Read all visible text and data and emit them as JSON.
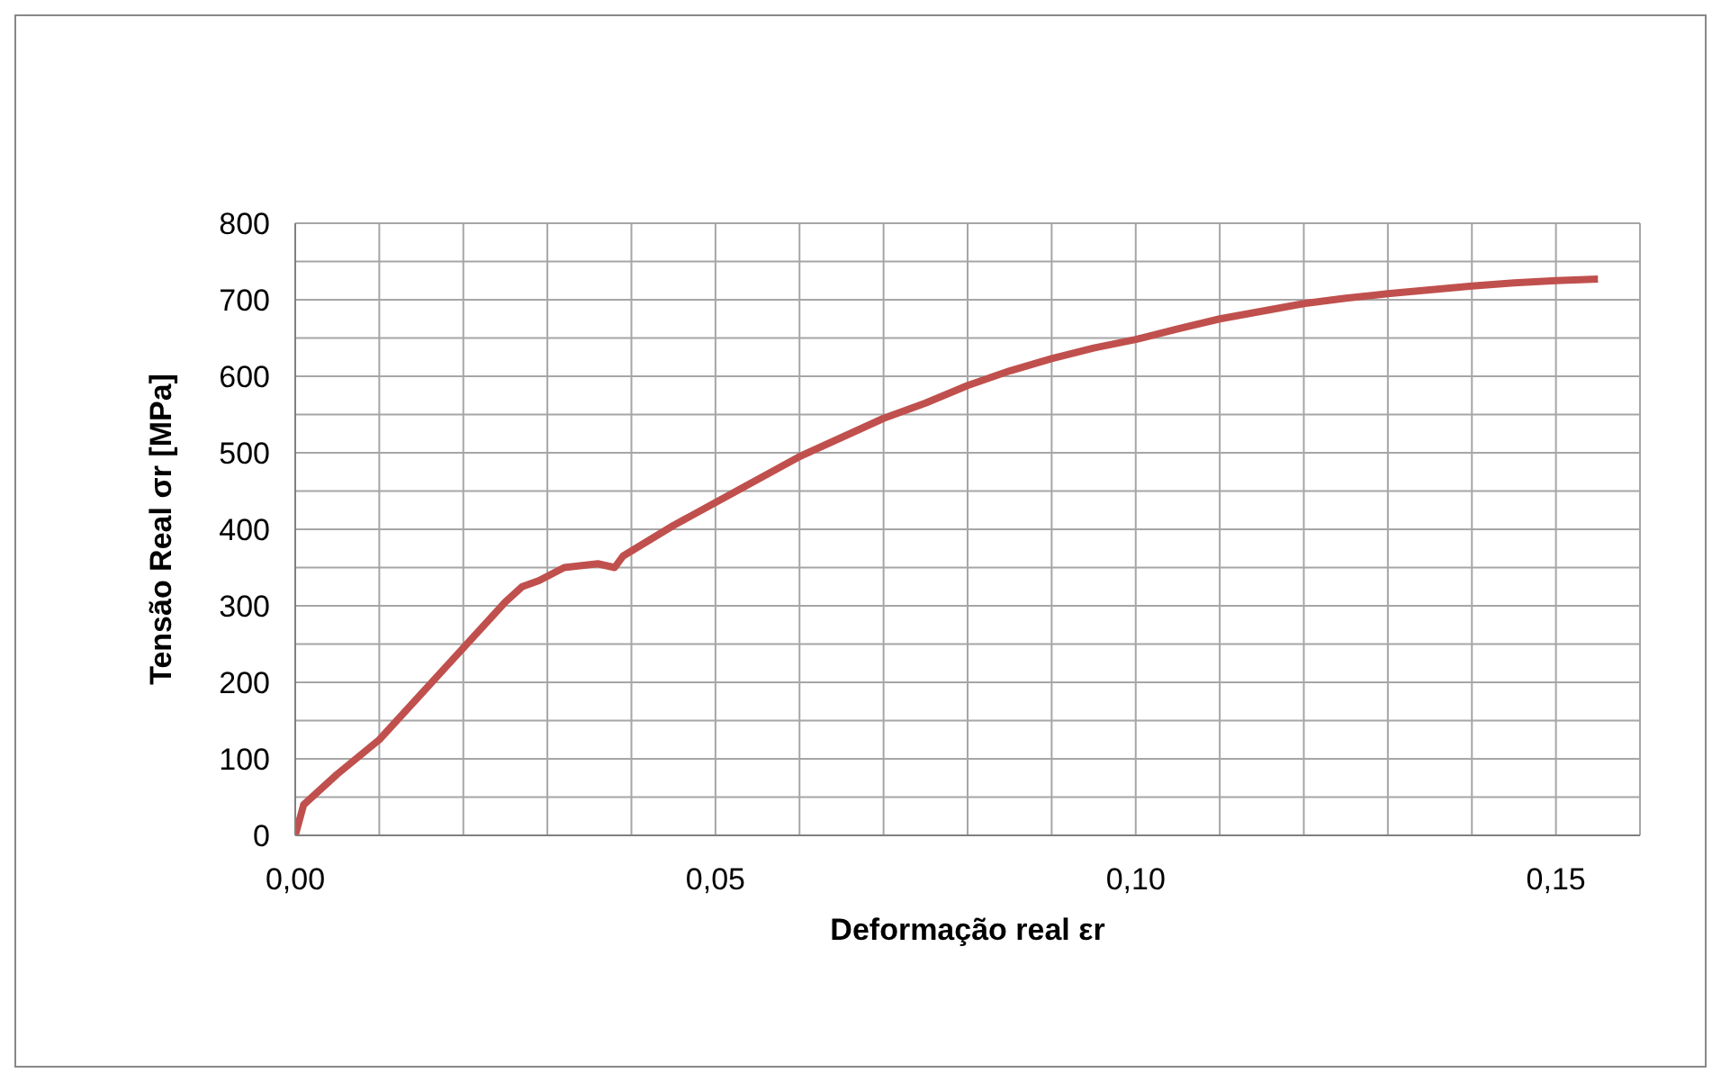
{
  "chart_data": {
    "type": "line",
    "xlabel": "Deformação real εr",
    "ylabel": "Tensão Real σr [MPa]",
    "x": [
      0,
      0.001,
      0.003,
      0.005,
      0.01,
      0.015,
      0.02,
      0.025,
      0.027,
      0.029,
      0.032,
      0.036,
      0.038,
      0.039,
      0.042,
      0.045,
      0.05,
      0.055,
      0.06,
      0.065,
      0.07,
      0.075,
      0.08,
      0.085,
      0.09,
      0.095,
      0.1,
      0.105,
      0.11,
      0.115,
      0.12,
      0.125,
      0.13,
      0.135,
      0.14,
      0.145,
      0.15,
      0.155
    ],
    "series": [
      {
        "color": "#c0504d",
        "values": [
          0,
          40,
          60,
          80,
          125,
          185,
          245,
          305,
          325,
          333,
          350,
          355,
          350,
          365,
          385,
          405,
          435,
          465,
          495,
          520,
          545,
          565,
          588,
          607,
          623,
          637,
          648,
          662,
          675,
          685,
          695,
          702,
          708,
          713,
          718,
          722,
          725,
          727
        ]
      }
    ],
    "xlim": [
      0,
      0.16
    ],
    "xticks": [
      {
        "value": 0,
        "label": "0,00"
      },
      {
        "value": 0.01,
        "label": null
      },
      {
        "value": 0.02,
        "label": null
      },
      {
        "value": 0.03,
        "label": null
      },
      {
        "value": 0.04,
        "label": null
      },
      {
        "value": 0.05,
        "label": "0,05"
      },
      {
        "value": 0.06,
        "label": null
      },
      {
        "value": 0.07,
        "label": null
      },
      {
        "value": 0.08,
        "label": null
      },
      {
        "value": 0.09,
        "label": null
      },
      {
        "value": 0.1,
        "label": "0,10"
      },
      {
        "value": 0.11,
        "label": null
      },
      {
        "value": 0.12,
        "label": null
      },
      {
        "value": 0.13,
        "label": null
      },
      {
        "value": 0.14,
        "label": null
      },
      {
        "value": 0.15,
        "label": "0,15"
      },
      {
        "value": 0.16,
        "label": null
      }
    ],
    "ylim": [
      0,
      800
    ],
    "yticks": [
      0,
      {
        "value": 50,
        "label": null
      },
      100,
      {
        "value": 150,
        "label": null
      },
      200,
      {
        "value": 250,
        "label": null
      },
      300,
      {
        "value": 350,
        "label": null
      },
      400,
      {
        "value": 450,
        "label": null
      },
      500,
      {
        "value": 550,
        "label": null
      },
      600,
      {
        "value": 650,
        "label": null
      },
      700,
      {
        "value": 750,
        "label": null
      },
      800
    ],
    "grid": true,
    "marker": "none",
    "line_style": "solid"
  }
}
